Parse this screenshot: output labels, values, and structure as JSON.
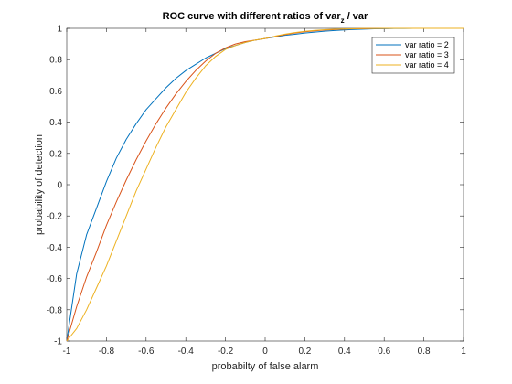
{
  "chart_data": {
    "type": "line",
    "title": {
      "main": "ROC curve with different ratios of var",
      "subscript": "z",
      "suffix": " / var"
    },
    "xlabel": "probabilty of false alarm",
    "ylabel": "probability of detection",
    "xlim": [
      -1,
      1
    ],
    "ylim": [
      -1,
      1
    ],
    "x_ticks": [
      "-1",
      "-0.8",
      "-0.6",
      "-0.4",
      "-0.2",
      "0",
      "0.2",
      "0.4",
      "0.6",
      "0.8",
      "1"
    ],
    "y_ticks": [
      "-1",
      "-0.8",
      "-0.6",
      "-0.4",
      "-0.2",
      "0",
      "0.2",
      "0.4",
      "0.6",
      "0.8",
      "1"
    ],
    "grid": false,
    "legend_position": "top-right",
    "x": [
      -1.0,
      -0.95,
      -0.9,
      -0.85,
      -0.8,
      -0.75,
      -0.7,
      -0.65,
      -0.6,
      -0.55,
      -0.5,
      -0.45,
      -0.4,
      -0.35,
      -0.3,
      -0.25,
      -0.2,
      -0.15,
      -0.1,
      -0.05,
      0.0,
      0.05,
      0.1,
      0.15,
      0.2,
      0.25,
      0.3,
      0.35,
      0.4,
      0.45,
      0.5,
      0.55,
      0.6,
      0.65,
      0.7,
      0.75,
      0.8,
      0.85,
      0.9,
      0.95,
      1.0
    ],
    "series": [
      {
        "name": "var ratio = 2",
        "color": "#0072BD",
        "values": [
          -1.0,
          -0.57,
          -0.32,
          -0.15,
          0.02,
          0.17,
          0.29,
          0.39,
          0.48,
          0.55,
          0.62,
          0.68,
          0.73,
          0.77,
          0.81,
          0.84,
          0.87,
          0.89,
          0.91,
          0.925,
          0.935,
          0.945,
          0.955,
          0.962,
          0.97,
          0.976,
          0.982,
          0.986,
          0.99,
          0.993,
          0.995,
          0.997,
          0.998,
          0.999,
          0.9995,
          1.0,
          1.0,
          1.0,
          1.0,
          1.0,
          1.0
        ]
      },
      {
        "name": "var ratio = 3",
        "color": "#D95319",
        "values": [
          -1.0,
          -0.78,
          -0.59,
          -0.43,
          -0.26,
          -0.11,
          0.03,
          0.16,
          0.28,
          0.39,
          0.49,
          0.58,
          0.66,
          0.73,
          0.79,
          0.84,
          0.875,
          0.9,
          0.915,
          0.925,
          0.935,
          0.948,
          0.96,
          0.97,
          0.978,
          0.984,
          0.989,
          0.992,
          0.995,
          0.997,
          0.998,
          0.999,
          0.9995,
          1.0,
          1.0,
          1.0,
          1.0,
          1.0,
          1.0,
          1.0,
          1.0
        ]
      },
      {
        "name": "var ratio = 4",
        "color": "#EDB120",
        "values": [
          -1.0,
          -0.92,
          -0.8,
          -0.66,
          -0.52,
          -0.36,
          -0.2,
          -0.04,
          0.1,
          0.24,
          0.37,
          0.48,
          0.59,
          0.68,
          0.76,
          0.82,
          0.865,
          0.89,
          0.91,
          0.925,
          0.935,
          0.95,
          0.963,
          0.973,
          0.981,
          0.987,
          0.991,
          0.994,
          0.996,
          0.998,
          0.999,
          0.9995,
          1.0,
          1.0,
          1.0,
          1.0,
          1.0,
          1.0,
          1.0,
          1.0,
          1.0
        ]
      }
    ]
  }
}
